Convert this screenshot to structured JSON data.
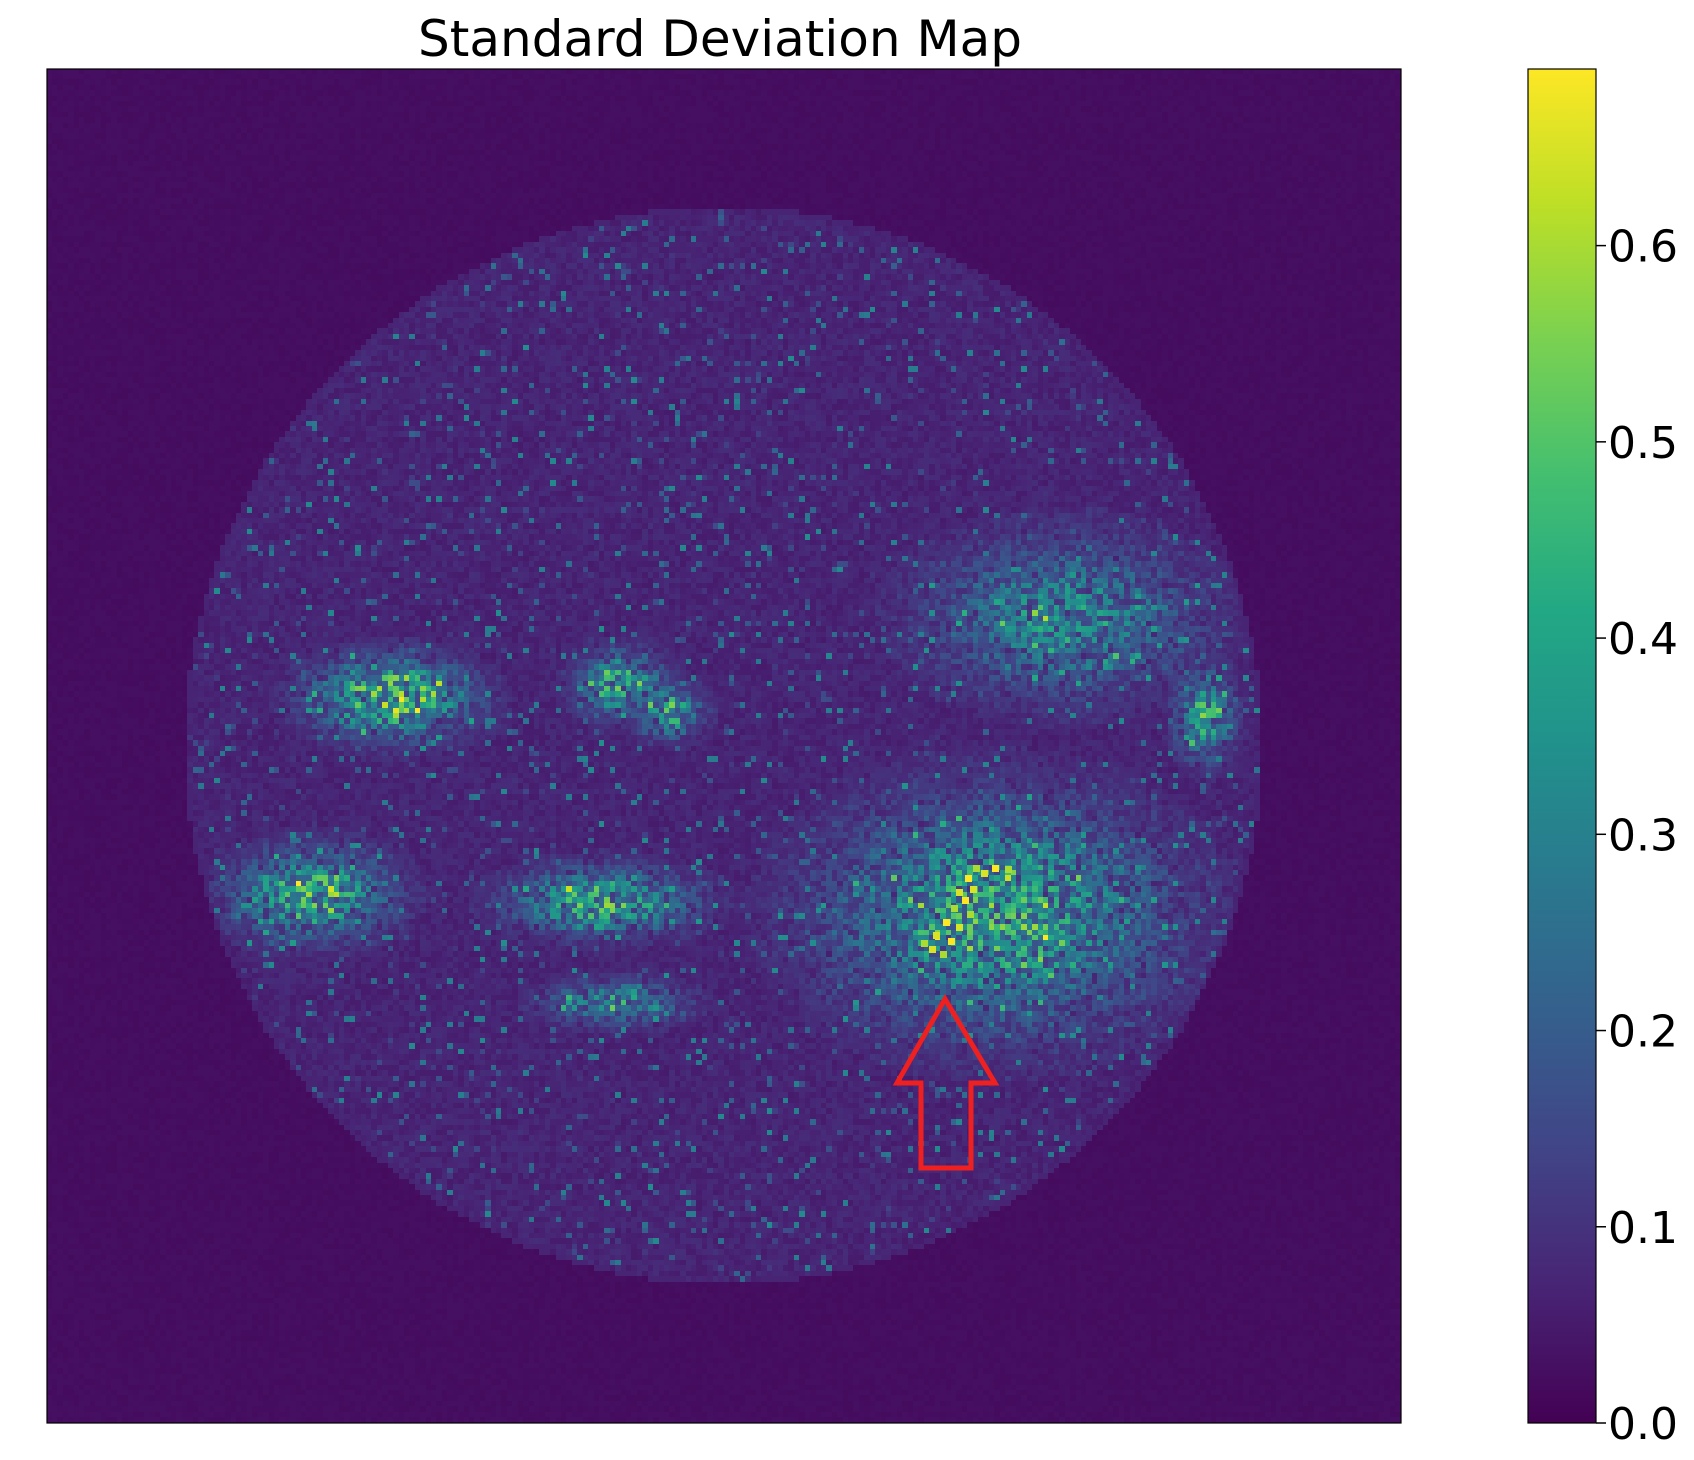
{
  "chart_data": {
    "type": "heatmap",
    "title": "Standard Deviation Map",
    "xlabel": "",
    "ylabel": "",
    "axes_ticks_visible": false,
    "colormap": "viridis",
    "colorbar": {
      "range": [
        0.0,
        0.69
      ],
      "ticks": [
        0.0,
        0.1,
        0.2,
        0.3,
        0.4,
        0.5,
        0.6
      ],
      "tick_labels": [
        "0.0",
        "0.1",
        "0.2",
        "0.3",
        "0.4",
        "0.5",
        "0.6"
      ]
    },
    "background_value": 0.02,
    "disk_value": 0.05,
    "hotspots": [
      {
        "name": "upper-left cluster",
        "cx": 0.255,
        "cy": 0.465,
        "sx": 0.035,
        "sy": 0.018,
        "peak": 0.55
      },
      {
        "name": "upper-middle cluster",
        "cx": 0.425,
        "cy": 0.455,
        "sx": 0.02,
        "sy": 0.015,
        "peak": 0.42
      },
      {
        "name": "upper-middle-right cluster",
        "cx": 0.46,
        "cy": 0.475,
        "sx": 0.015,
        "sy": 0.012,
        "peak": 0.42
      },
      {
        "name": "right edge cluster",
        "cx": 0.855,
        "cy": 0.478,
        "sx": 0.013,
        "sy": 0.02,
        "peak": 0.42
      },
      {
        "name": "left cluster",
        "cx": 0.195,
        "cy": 0.61,
        "sx": 0.035,
        "sy": 0.02,
        "peak": 0.45
      },
      {
        "name": "center cluster",
        "cx": 0.41,
        "cy": 0.615,
        "sx": 0.04,
        "sy": 0.015,
        "peak": 0.45
      },
      {
        "name": "main right cluster",
        "cx": 0.7,
        "cy": 0.625,
        "sx": 0.075,
        "sy": 0.05,
        "peak": 0.42
      },
      {
        "name": "main right dense cluster",
        "cx": 0.725,
        "cy": 0.63,
        "sx": 0.03,
        "sy": 0.035,
        "peak": 0.45
      },
      {
        "name": "upper right scattered",
        "cx": 0.75,
        "cy": 0.405,
        "sx": 0.06,
        "sy": 0.035,
        "peak": 0.3
      },
      {
        "name": "lower center",
        "cx": 0.42,
        "cy": 0.69,
        "sx": 0.03,
        "sy": 0.01,
        "peak": 0.35
      }
    ],
    "bright_path_values": [
      0.6,
      0.65,
      0.69
    ],
    "annotation": {
      "type": "arrow",
      "color": "#ee2020",
      "direction": "up",
      "target": "main right dense cluster"
    }
  }
}
